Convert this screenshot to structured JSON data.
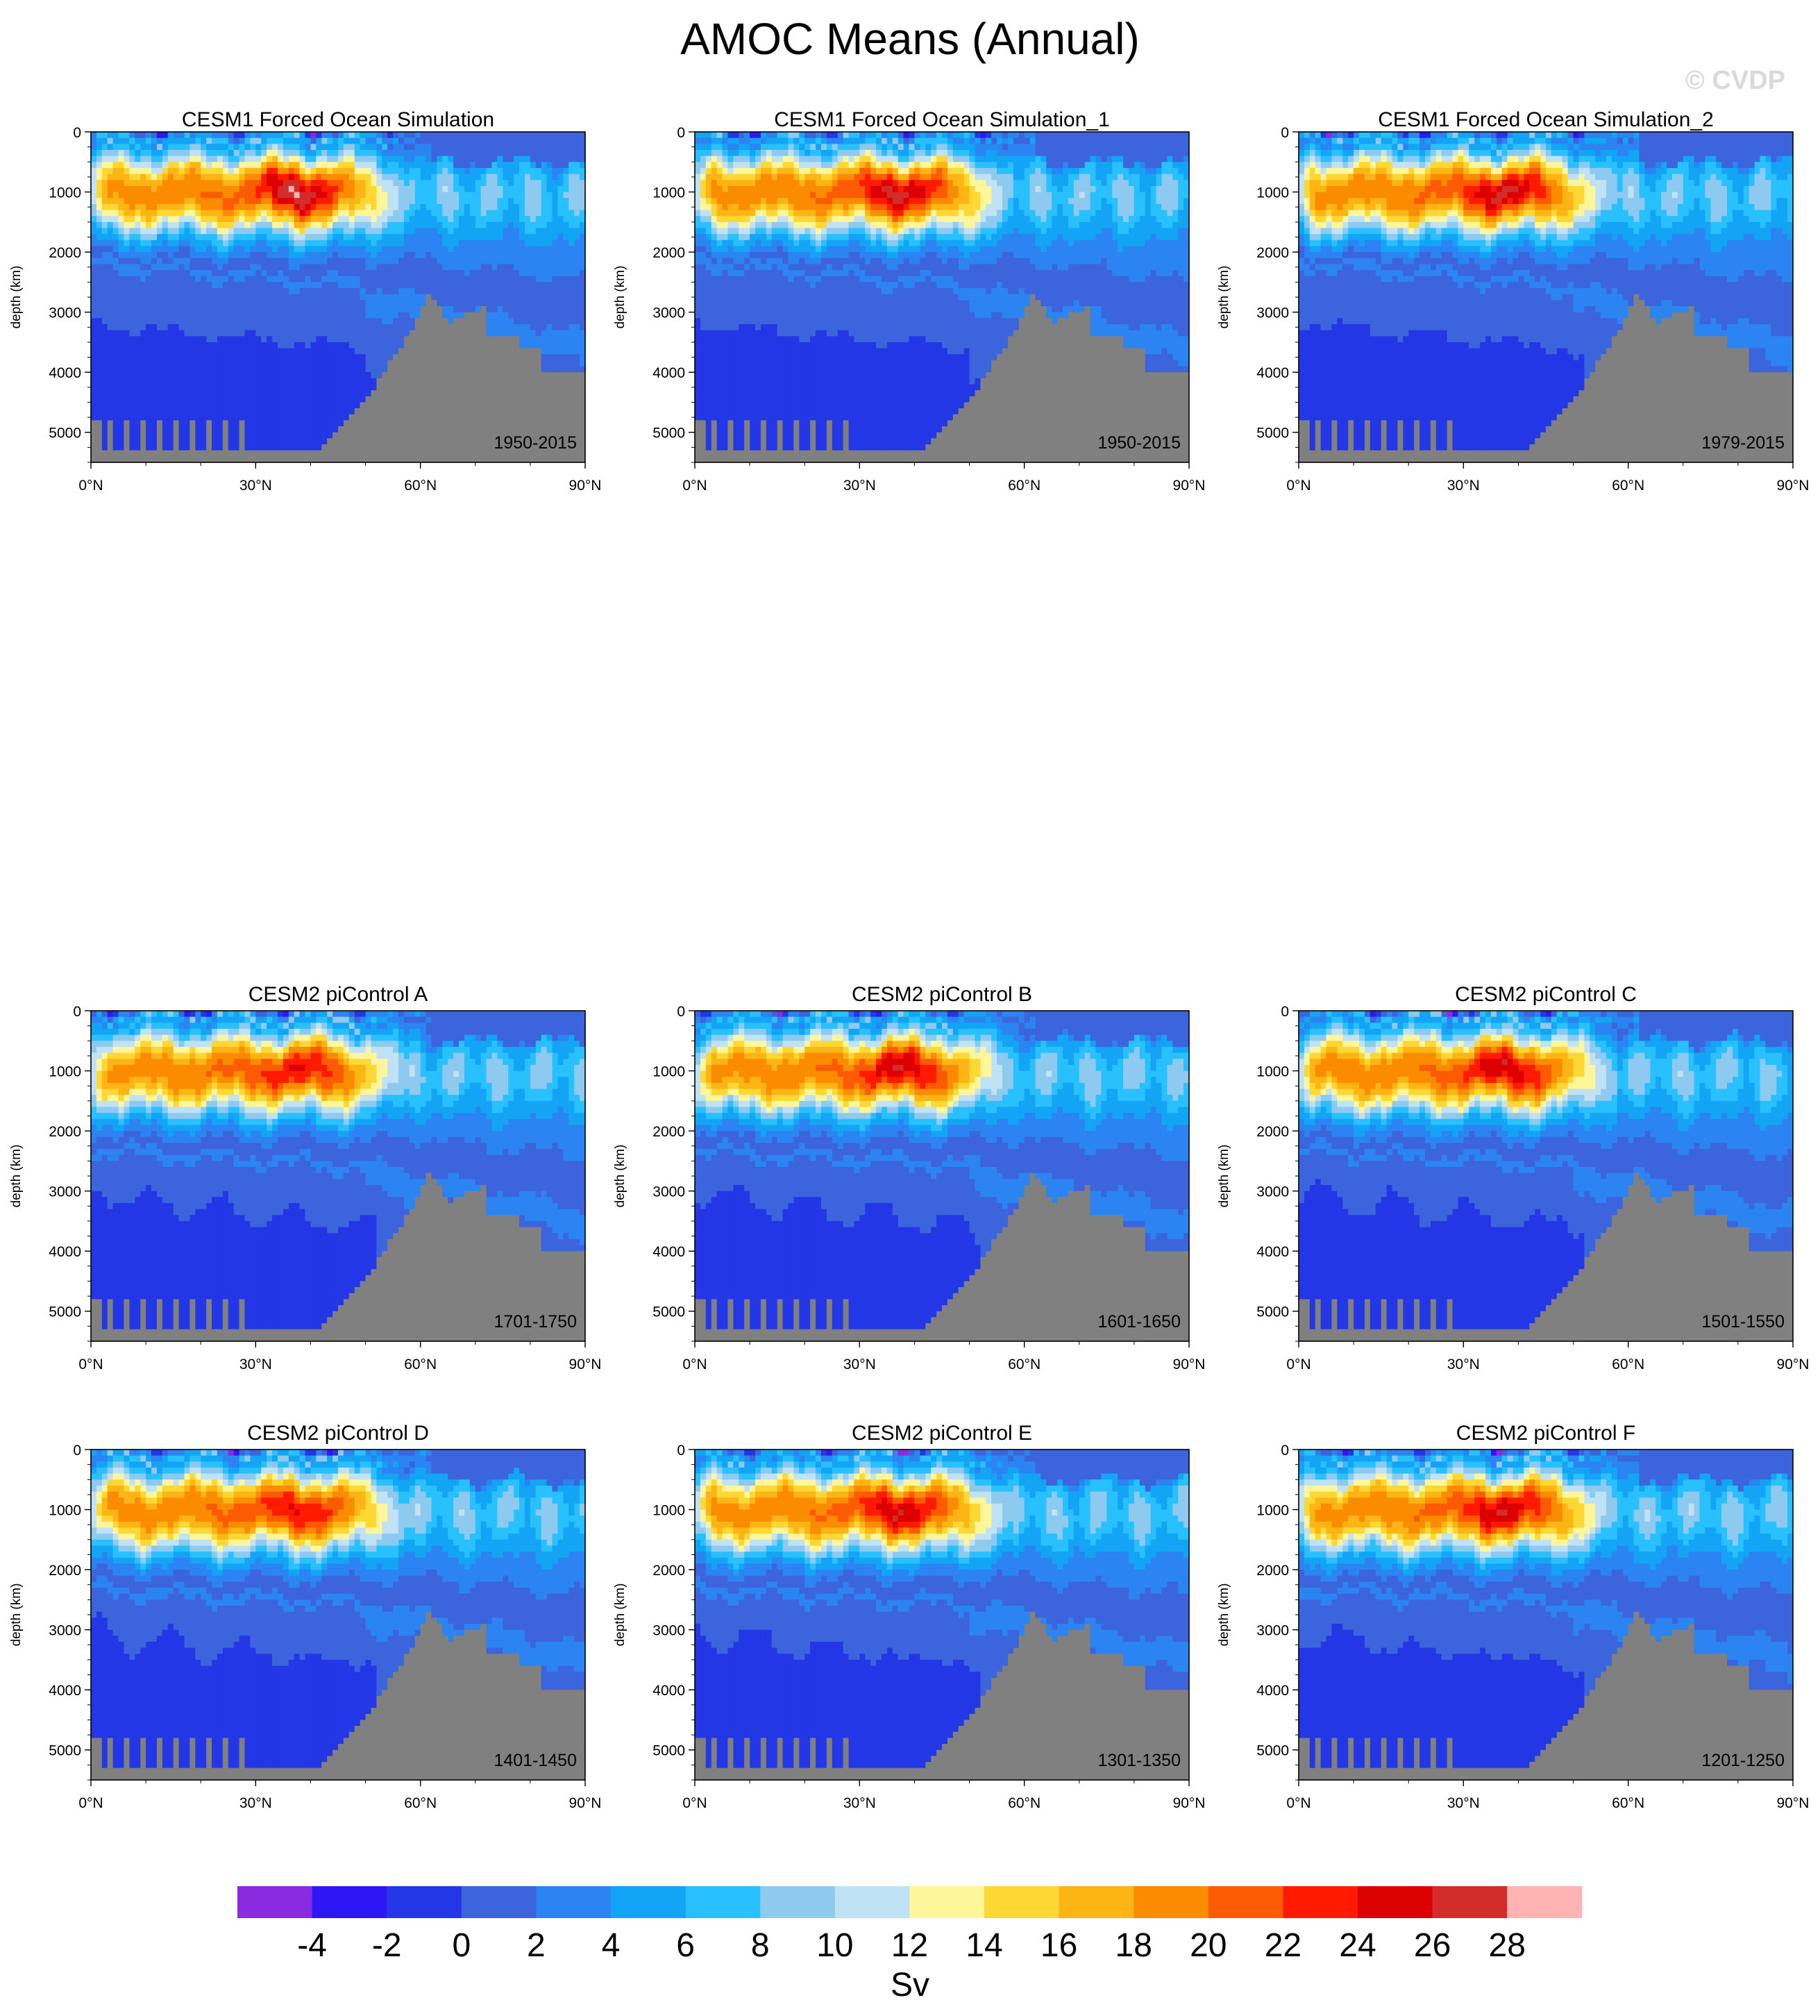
{
  "figure": {
    "title": "AMOC Means (Annual)",
    "watermark": "© CVDP"
  },
  "chart_data": {
    "type": "contour",
    "ylabel": "depth (km)",
    "x_ticks": [
      "0°N",
      "30°N",
      "60°N",
      "90°N"
    ],
    "x_range": [
      0,
      90
    ],
    "y_ticks": [
      "0",
      "1000",
      "2000",
      "3000",
      "4000",
      "5000"
    ],
    "y_range": [
      0,
      5500
    ],
    "y_reversed": true,
    "panels": [
      {
        "title": "CESM1 Forced Ocean Simulation",
        "period": "1950-2015",
        "peak": 26,
        "style": "cesm1"
      },
      {
        "title": "CESM1 Forced Ocean Simulation_1",
        "period": "1950-2015",
        "peak": 25,
        "style": "cesm1"
      },
      {
        "title": "CESM1 Forced Ocean Simulation_2",
        "period": "1979-2015",
        "peak": 25,
        "style": "cesm1"
      },
      {
        "title": "CESM2 piControl A",
        "period": "1701-1750",
        "peak": 22,
        "style": "cesm2"
      },
      {
        "title": "CESM2 piControl B",
        "period": "1601-1650",
        "peak": 24,
        "style": "cesm2"
      },
      {
        "title": "CESM2 piControl C",
        "period": "1501-1550",
        "peak": 24,
        "style": "cesm2"
      },
      {
        "title": "CESM2 piControl D",
        "period": "1401-1450",
        "peak": 22,
        "style": "cesm2"
      },
      {
        "title": "CESM2 piControl E",
        "period": "1301-1350",
        "peak": 24,
        "style": "cesm2"
      },
      {
        "title": "CESM2 piControl F",
        "period": "1201-1250",
        "peak": 24,
        "style": "cesm2"
      }
    ],
    "colorbar": {
      "label": "Sv",
      "levels": [
        "-4",
        "-2",
        "0",
        "2",
        "4",
        "6",
        "8",
        "10",
        "12",
        "14",
        "16",
        "18",
        "20",
        "22",
        "24",
        "26",
        "28"
      ],
      "colors": [
        "#8a2be2",
        "#2d17f5",
        "#2337e6",
        "#3c64dc",
        "#2b84f2",
        "#14a4f5",
        "#28c0ff",
        "#8ecaf0",
        "#bfe2f5",
        "#fff59a",
        "#fdd835",
        "#fdb515",
        "#fb8c00",
        "#fc5a03",
        "#ff1a00",
        "#dd0000",
        "#d42b2b",
        "#ffb3b3"
      ]
    },
    "topography_color": "#808080"
  }
}
